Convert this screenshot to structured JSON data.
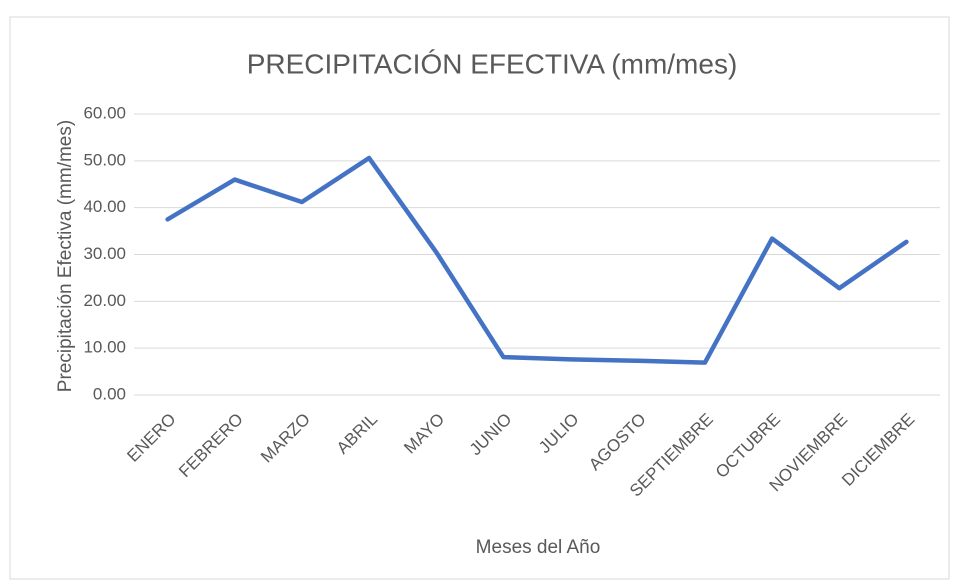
{
  "chart_data": {
    "type": "line",
    "title": "PRECIPITACIÓN EFECTIVA (mm/mes)",
    "x_label": "Meses del Año",
    "y_label": "Precipitación Efectiva (mm/mes)",
    "categories": [
      "ENERO",
      "FEBRERO",
      "MARZO",
      "ABRIL",
      "MAYO",
      "JUNIO",
      "JULIO",
      "AGOSTO",
      "SEPTIEMBRE",
      "OCTUBRE",
      "NOVIEMBRE",
      "DICIEMBRE"
    ],
    "values": [
      37.5,
      46.0,
      41.2,
      50.6,
      30.5,
      8.1,
      7.6,
      7.3,
      6.9,
      33.4,
      22.8,
      32.7
    ],
    "color": "#4472c4",
    "ylim": [
      0,
      60
    ],
    "yticks": [
      {
        "value": 0,
        "label": "0.00"
      },
      {
        "value": 10,
        "label": "10.00"
      },
      {
        "value": 20,
        "label": "20.00"
      },
      {
        "value": 30,
        "label": "30.00"
      },
      {
        "value": 40,
        "label": "40.00"
      },
      {
        "value": 50,
        "label": "50.00"
      },
      {
        "value": 60,
        "label": "60.00"
      }
    ],
    "grid": true
  }
}
